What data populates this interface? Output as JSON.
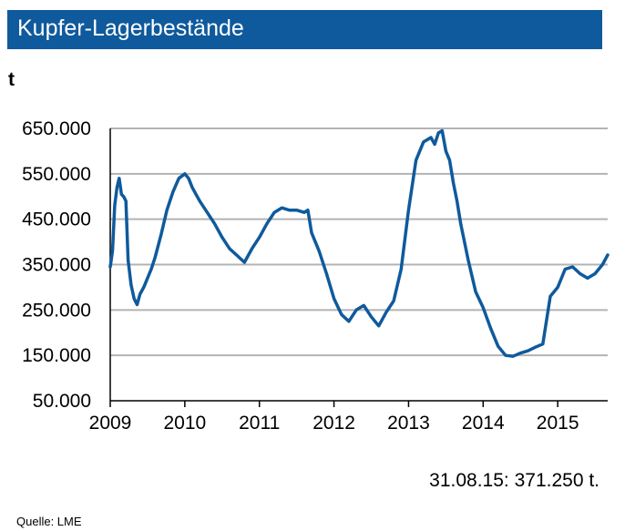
{
  "header": {
    "title": "Kupfer-Lagerbestände",
    "unit": "t"
  },
  "footer": {
    "note": "31.08.15: 371.250 t.",
    "source": "Quelle:  LME"
  },
  "colors": {
    "title_bg": "#0f5a9c",
    "line": "#0f5a9c",
    "grid": "#b3b3b3"
  },
  "chart_data": {
    "type": "line",
    "title": "Kupfer-Lagerbestände",
    "ylabel": "t",
    "xlim": [
      2009.0,
      2015.67
    ],
    "ylim": [
      50000,
      650000
    ],
    "y_ticks": [
      650000,
      550000,
      450000,
      350000,
      250000,
      150000,
      50000
    ],
    "y_tick_labels": [
      "650.000",
      "550.000",
      "450.000",
      "350.000",
      "250.000",
      "150.000",
      "50.000"
    ],
    "x_ticks": [
      2009,
      2010,
      2011,
      2012,
      2013,
      2014,
      2015
    ],
    "x_tick_labels": [
      "2009",
      "2010",
      "2011",
      "2012",
      "2013",
      "2014",
      "2015"
    ],
    "grid": "horizontal",
    "series": [
      {
        "x": [
          2009.0,
          2009.03,
          2009.06,
          2009.09,
          2009.12,
          2009.15,
          2009.18,
          2009.21,
          2009.24,
          2009.28,
          2009.32,
          2009.36,
          2009.4,
          2009.45,
          2009.5,
          2009.55,
          2009.6,
          2009.68,
          2009.76,
          2009.84,
          2009.92,
          2010.0,
          2010.05,
          2010.1,
          2010.15,
          2010.2,
          2010.3,
          2010.4,
          2010.5,
          2010.6,
          2010.7,
          2010.8,
          2010.9,
          2011.0,
          2011.1,
          2011.2,
          2011.3,
          2011.4,
          2011.5,
          2011.6,
          2011.65,
          2011.7,
          2011.75,
          2011.8,
          2011.9,
          2012.0,
          2012.1,
          2012.2,
          2012.3,
          2012.4,
          2012.5,
          2012.6,
          2012.7,
          2012.8,
          2012.9,
          2013.0,
          2013.1,
          2013.2,
          2013.3,
          2013.35,
          2013.4,
          2013.45,
          2013.5,
          2013.55,
          2013.6,
          2013.65,
          2013.7,
          2013.8,
          2013.9,
          2014.0,
          2014.1,
          2014.2,
          2014.3,
          2014.4,
          2014.5,
          2014.6,
          2014.7,
          2014.8,
          2014.9,
          2015.0,
          2015.1,
          2015.2,
          2015.3,
          2015.4,
          2015.5,
          2015.6,
          2015.67
        ],
        "values": [
          345000,
          380000,
          480000,
          520000,
          540000,
          505000,
          500000,
          490000,
          360000,
          305000,
          275000,
          262000,
          285000,
          300000,
          320000,
          340000,
          365000,
          415000,
          470000,
          510000,
          540000,
          550000,
          540000,
          520000,
          505000,
          490000,
          465000,
          440000,
          410000,
          385000,
          370000,
          355000,
          385000,
          410000,
          440000,
          465000,
          475000,
          470000,
          470000,
          465000,
          470000,
          420000,
          400000,
          380000,
          330000,
          275000,
          240000,
          225000,
          250000,
          260000,
          235000,
          215000,
          245000,
          270000,
          340000,
          470000,
          580000,
          620000,
          630000,
          615000,
          640000,
          645000,
          600000,
          580000,
          530000,
          490000,
          440000,
          360000,
          290000,
          255000,
          210000,
          170000,
          150000,
          148000,
          155000,
          160000,
          168000,
          175000,
          280000,
          300000,
          340000,
          345000,
          330000,
          320000,
          330000,
          350000,
          371250
        ]
      }
    ]
  }
}
